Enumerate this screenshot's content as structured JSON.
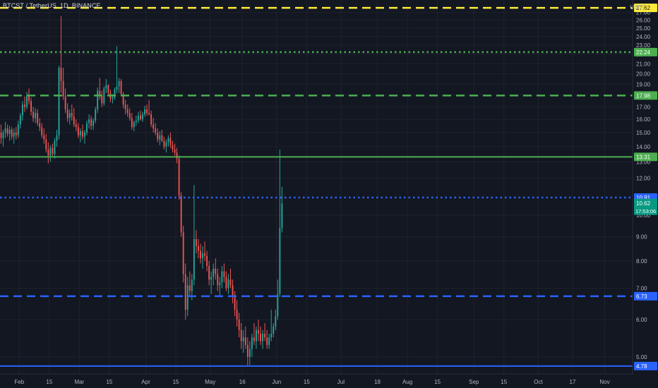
{
  "header": {
    "symbol_title": "BTCST / TetherUS, 1D, BINANCE",
    "unit": "USDT"
  },
  "colors": {
    "background": "#131722",
    "grid": "#1e222d",
    "up": "#26a69a",
    "down": "#ef5350",
    "axis_text": "#b2b5be"
  },
  "chart_data": {
    "type": "candlestick",
    "x_axis": {
      "range": [
        "2021-01-23",
        "2021-11-14"
      ],
      "ticks": [
        {
          "date": "2021-02-01",
          "label": "Feb"
        },
        {
          "date": "2021-02-15",
          "label": "15"
        },
        {
          "date": "2021-03-01",
          "label": "Mar"
        },
        {
          "date": "2021-03-15",
          "label": "15"
        },
        {
          "date": "2021-04-01",
          "label": "Apr"
        },
        {
          "date": "2021-04-15",
          "label": "15"
        },
        {
          "date": "2021-05-01",
          "label": "May"
        },
        {
          "date": "2021-05-16",
          "label": "16"
        },
        {
          "date": "2021-06-01",
          "label": "Jun"
        },
        {
          "date": "2021-06-15",
          "label": "15"
        },
        {
          "date": "2021-07-01",
          "label": "Jul"
        },
        {
          "date": "2021-07-18",
          "label": "18"
        },
        {
          "date": "2021-08-01",
          "label": "Aug"
        },
        {
          "date": "2021-08-15",
          "label": "15"
        },
        {
          "date": "2021-09-01",
          "label": "Sep"
        },
        {
          "date": "2021-09-15",
          "label": "15"
        },
        {
          "date": "2021-10-01",
          "label": "Oct"
        },
        {
          "date": "2021-10-17",
          "label": "17"
        },
        {
          "date": "2021-11-01",
          "label": "Nov"
        }
      ]
    },
    "y_axis": {
      "scale": "log",
      "range": [
        4.6,
        28.7
      ],
      "ticks": [
        "5.00",
        "6.00",
        "7.00",
        "8.00",
        "9.00",
        "10.00",
        "12.00",
        "13.00",
        "14.00",
        "15.00",
        "16.00",
        "17.00",
        "18.00",
        "19.00",
        "20.00",
        "21.00",
        "22.00",
        "23.00",
        "24.00",
        "25.00",
        "26.00",
        "27.00"
      ]
    },
    "horizontal_lines": [
      {
        "price": 27.62,
        "label": "27.62",
        "color": "#ffeb3b",
        "style": "dashed",
        "width": 2.5
      },
      {
        "price": 22.24,
        "label": "22.24",
        "color": "#4caf50",
        "style": "dotted",
        "width": 2.5
      },
      {
        "price": 17.98,
        "label": "17.98",
        "color": "#4caf50",
        "style": "dashed",
        "width": 2.5
      },
      {
        "price": 13.31,
        "label": "13.31",
        "color": "#4caf50",
        "style": "solid",
        "width": 2
      },
      {
        "price": 10.91,
        "label": "10.91",
        "color": "#2962ff",
        "style": "dotted",
        "width": 2.5
      },
      {
        "price": 6.73,
        "label": "6.73",
        "color": "#2962ff",
        "style": "dashed",
        "width": 2.5
      },
      {
        "price": 4.78,
        "label": "4.78",
        "color": "#2962ff",
        "style": "solid",
        "width": 2
      }
    ],
    "current_price": {
      "price": 10.62,
      "label": "10.62",
      "countdown": "17:53:06",
      "color": "#089981"
    },
    "start_date": "2021-01-23",
    "candles": [
      [
        15.0,
        15.6,
        14.2,
        14.6
      ],
      [
        14.6,
        15.2,
        14.0,
        15.0
      ],
      [
        15.0,
        15.8,
        14.6,
        15.3
      ],
      [
        15.3,
        15.6,
        14.7,
        14.9
      ],
      [
        14.9,
        15.5,
        14.4,
        15.2
      ],
      [
        15.2,
        15.4,
        14.5,
        14.7
      ],
      [
        14.7,
        15.3,
        14.2,
        15.0
      ],
      [
        15.0,
        15.4,
        14.5,
        14.8
      ],
      [
        14.8,
        15.9,
        14.6,
        15.6
      ],
      [
        15.6,
        16.5,
        15.3,
        16.3
      ],
      [
        16.3,
        17.5,
        15.9,
        17.2
      ],
      [
        17.2,
        17.9,
        16.6,
        17.0
      ],
      [
        17.0,
        18.3,
        16.8,
        17.9
      ],
      [
        17.9,
        18.6,
        17.2,
        17.5
      ],
      [
        17.5,
        17.8,
        16.3,
        16.6
      ],
      [
        16.6,
        17.0,
        15.8,
        16.1
      ],
      [
        16.1,
        16.9,
        15.7,
        16.5
      ],
      [
        16.5,
        16.8,
        15.5,
        15.7
      ],
      [
        15.7,
        16.1,
        15.1,
        15.4
      ],
      [
        15.4,
        15.7,
        14.6,
        14.8
      ],
      [
        14.8,
        15.3,
        14.2,
        14.5
      ],
      [
        14.5,
        14.9,
        13.6,
        13.8
      ],
      [
        13.8,
        14.3,
        12.9,
        13.4
      ],
      [
        13.4,
        14.1,
        13.0,
        13.9
      ],
      [
        13.9,
        14.2,
        13.3,
        13.5
      ],
      [
        13.5,
        14.6,
        13.2,
        14.4
      ],
      [
        14.4,
        15.2,
        14.0,
        14.8
      ],
      [
        14.8,
        20.8,
        14.5,
        20.6
      ],
      [
        20.6,
        26.5,
        18.2,
        19.3
      ],
      [
        19.3,
        20.6,
        17.6,
        17.9
      ],
      [
        17.9,
        18.6,
        16.5,
        16.8
      ],
      [
        16.8,
        17.3,
        15.8,
        16.1
      ],
      [
        16.1,
        16.8,
        15.6,
        16.5
      ],
      [
        16.5,
        17.2,
        15.9,
        16.2
      ],
      [
        16.2,
        16.9,
        15.4,
        15.6
      ],
      [
        15.6,
        16.0,
        15.1,
        15.4
      ],
      [
        15.4,
        15.7,
        14.6,
        14.8
      ],
      [
        14.8,
        15.3,
        14.3,
        15.1
      ],
      [
        15.1,
        15.6,
        14.5,
        14.7
      ],
      [
        14.7,
        15.2,
        14.2,
        15.0
      ],
      [
        15.0,
        15.9,
        14.8,
        15.7
      ],
      [
        15.7,
        16.4,
        15.3,
        16.0
      ],
      [
        16.0,
        16.3,
        15.2,
        15.5
      ],
      [
        15.5,
        16.1,
        15.2,
        15.9
      ],
      [
        15.9,
        17.0,
        15.7,
        16.8
      ],
      [
        16.8,
        18.7,
        16.5,
        18.4
      ],
      [
        18.4,
        19.6,
        17.6,
        18.0
      ],
      [
        18.0,
        18.4,
        17.0,
        17.3
      ],
      [
        17.3,
        18.8,
        17.1,
        18.6
      ],
      [
        18.6,
        19.5,
        18.2,
        18.9
      ],
      [
        18.9,
        19.0,
        17.9,
        18.2
      ],
      [
        18.2,
        18.5,
        17.4,
        17.7
      ],
      [
        17.7,
        18.1,
        17.3,
        17.8
      ],
      [
        17.8,
        18.7,
        17.6,
        18.5
      ],
      [
        18.5,
        22.9,
        18.2,
        18.8
      ],
      [
        18.8,
        19.6,
        18.2,
        19.3
      ],
      [
        19.3,
        19.5,
        17.9,
        18.1
      ],
      [
        18.1,
        18.3,
        16.9,
        17.2
      ],
      [
        17.2,
        17.6,
        16.4,
        16.8
      ],
      [
        16.8,
        17.2,
        16.2,
        16.5
      ],
      [
        16.5,
        16.9,
        15.9,
        16.1
      ],
      [
        16.1,
        16.5,
        15.2,
        15.4
      ],
      [
        15.4,
        15.9,
        15.1,
        15.8
      ],
      [
        15.8,
        16.3,
        15.5,
        15.9
      ],
      [
        15.9,
        16.6,
        15.7,
        16.3
      ],
      [
        16.3,
        16.7,
        15.9,
        16.0
      ],
      [
        16.0,
        16.6,
        15.8,
        16.4
      ],
      [
        16.4,
        17.1,
        16.2,
        16.8
      ],
      [
        16.8,
        17.2,
        16.3,
        16.5
      ],
      [
        16.5,
        17.6,
        16.3,
        16.4
      ],
      [
        16.4,
        16.7,
        15.4,
        15.6
      ],
      [
        15.6,
        16.1,
        15.0,
        15.3
      ],
      [
        15.3,
        15.7,
        14.8,
        15.0
      ],
      [
        15.0,
        15.3,
        14.3,
        14.5
      ],
      [
        14.5,
        15.1,
        14.1,
        14.8
      ],
      [
        14.8,
        15.2,
        14.3,
        14.4
      ],
      [
        14.4,
        14.7,
        13.8,
        14.0
      ],
      [
        14.0,
        14.5,
        13.6,
        14.3
      ],
      [
        14.3,
        14.8,
        14.0,
        14.6
      ],
      [
        14.6,
        15.0,
        13.9,
        14.1
      ],
      [
        14.1,
        14.4,
        13.6,
        13.8
      ],
      [
        13.8,
        14.2,
        13.4,
        13.6
      ],
      [
        13.6,
        13.9,
        12.9,
        13.2
      ],
      [
        13.2,
        13.4,
        10.8,
        11.0
      ],
      [
        11.0,
        11.2,
        9.0,
        9.2
      ],
      [
        9.2,
        9.5,
        7.2,
        7.5
      ],
      [
        7.5,
        7.9,
        6.0,
        6.3
      ],
      [
        6.3,
        7.4,
        6.1,
        7.1
      ],
      [
        7.1,
        7.6,
        6.7,
        6.9
      ],
      [
        6.9,
        7.5,
        6.6,
        7.3
      ],
      [
        7.3,
        11.6,
        7.1,
        8.9
      ],
      [
        8.9,
        9.3,
        8.3,
        8.6
      ],
      [
        8.6,
        8.9,
        8.1,
        8.4
      ],
      [
        8.4,
        8.7,
        7.9,
        8.1
      ],
      [
        8.1,
        8.6,
        7.7,
        8.3
      ],
      [
        8.3,
        8.8,
        8.0,
        8.2
      ],
      [
        8.2,
        8.4,
        7.6,
        7.8
      ],
      [
        7.8,
        8.0,
        7.1,
        7.3
      ],
      [
        7.3,
        7.6,
        6.8,
        7.4
      ],
      [
        7.4,
        7.9,
        7.1,
        7.7
      ],
      [
        7.7,
        8.1,
        7.3,
        7.5
      ],
      [
        7.5,
        7.7,
        6.9,
        7.1
      ],
      [
        7.1,
        7.4,
        6.7,
        7.2
      ],
      [
        7.2,
        7.8,
        7.0,
        7.6
      ],
      [
        7.6,
        7.9,
        7.2,
        7.4
      ],
      [
        7.4,
        7.6,
        6.9,
        7.0
      ],
      [
        7.0,
        7.5,
        6.8,
        7.3
      ],
      [
        7.3,
        7.7,
        7.0,
        7.1
      ],
      [
        7.1,
        7.3,
        6.5,
        6.7
      ],
      [
        6.7,
        6.9,
        6.1,
        6.3
      ],
      [
        6.3,
        6.6,
        5.8,
        6.0
      ],
      [
        6.0,
        6.2,
        5.5,
        5.7
      ],
      [
        5.7,
        5.9,
        5.2,
        5.4
      ],
      [
        5.4,
        5.7,
        5.1,
        5.5
      ],
      [
        5.5,
        5.8,
        5.2,
        5.3
      ],
      [
        5.3,
        5.5,
        4.8,
        5.0
      ],
      [
        5.0,
        5.4,
        4.8,
        5.2
      ],
      [
        5.2,
        5.6,
        5.0,
        5.5
      ],
      [
        5.5,
        5.9,
        5.3,
        5.4
      ],
      [
        5.4,
        5.8,
        5.2,
        5.7
      ],
      [
        5.7,
        6.0,
        5.4,
        5.6
      ],
      [
        5.6,
        5.8,
        5.3,
        5.4
      ],
      [
        5.4,
        5.7,
        5.2,
        5.6
      ],
      [
        5.6,
        5.9,
        5.4,
        5.5
      ],
      [
        5.5,
        5.7,
        5.2,
        5.3
      ],
      [
        5.3,
        5.6,
        5.2,
        5.5
      ],
      [
        5.5,
        6.3,
        5.4,
        5.6
      ],
      [
        5.6,
        5.9,
        5.5,
        5.8
      ],
      [
        5.8,
        6.3,
        5.7,
        6.1
      ],
      [
        6.1,
        7.3,
        6.0,
        6.8
      ],
      [
        6.8,
        13.8,
        6.7,
        9.4
      ],
      [
        9.4,
        11.5,
        9.2,
        10.6
      ]
    ]
  }
}
